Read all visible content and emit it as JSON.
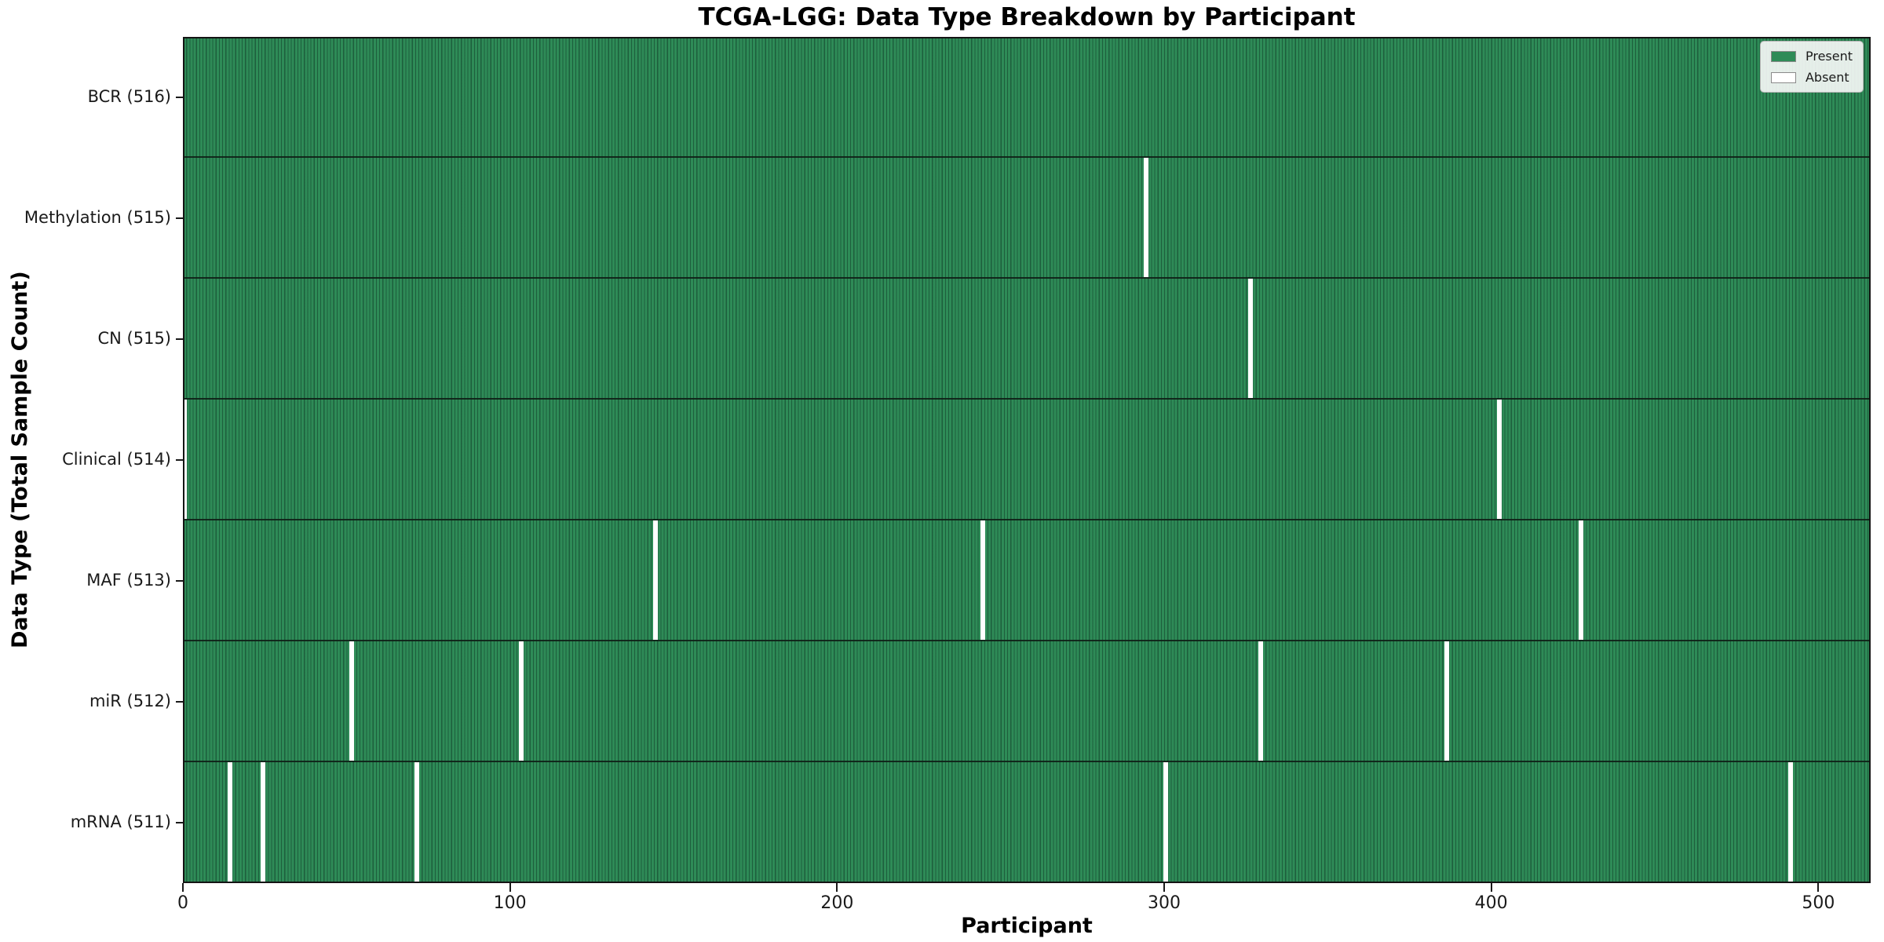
{
  "chart_data": {
    "type": "heatmap",
    "title": "TCGA-LGG: Data Type Breakdown by Participant",
    "xlabel": "Participant",
    "ylabel": "Data Type (Total Sample Count)",
    "x_range": [
      0,
      516
    ],
    "x_ticks": [
      0,
      100,
      200,
      300,
      400,
      500
    ],
    "n_participants": 516,
    "grid": false,
    "legend_position": "upper right",
    "legend": [
      {
        "label": "Present",
        "color": "#2e8b57"
      },
      {
        "label": "Absent",
        "color": "#ffffff"
      }
    ],
    "rows": [
      {
        "label": "BCR (516)",
        "total": 516,
        "absent_participants": []
      },
      {
        "label": "Methylation (515)",
        "total": 515,
        "absent_participants": [
          294
        ]
      },
      {
        "label": "CN (515)",
        "total": 515,
        "absent_participants": [
          326
        ]
      },
      {
        "label": "Clinical (514)",
        "total": 514,
        "absent_participants": [
          0,
          402
        ]
      },
      {
        "label": "MAF (513)",
        "total": 513,
        "absent_participants": [
          144,
          244,
          427
        ]
      },
      {
        "label": "miR (512)",
        "total": 512,
        "absent_participants": [
          51,
          103,
          329,
          386
        ]
      },
      {
        "label": "mRNA (511)",
        "total": 511,
        "absent_participants": [
          14,
          24,
          71,
          300,
          491
        ]
      }
    ],
    "colors": {
      "present": "#2e8b57",
      "absent": "#ffffff",
      "cell_edge": "#12402a",
      "axis": "#1a1a1a"
    }
  }
}
